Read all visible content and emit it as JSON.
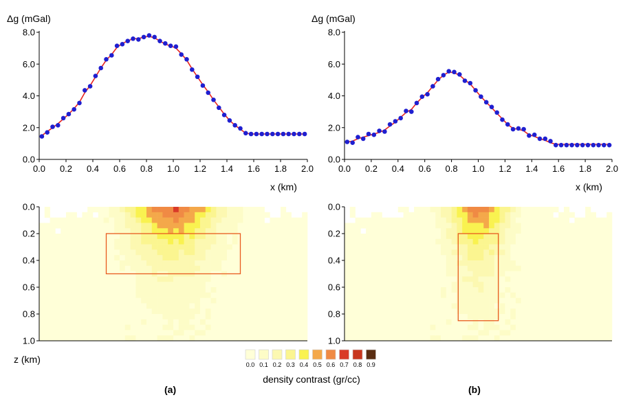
{
  "labels": {
    "dg_axis": "Δg (mGal)",
    "x_axis": "x (km)",
    "z_axis": "z (km)",
    "colorbar_title": "density contrast (gr/cc)",
    "panel_a": "(a)",
    "panel_b": "(b)"
  },
  "chart_data": [
    {
      "type": "line",
      "panel": "(a)",
      "xlabel": "x (km)",
      "ylabel": "Δg (mGal)",
      "xlim": [
        0,
        2.0
      ],
      "ylim": [
        0,
        8.0
      ],
      "xticks": [
        "0.0",
        "0.2",
        "0.4",
        "0.6",
        "0.8",
        "1.0",
        "1.2",
        "1.4",
        "1.6",
        "1.8",
        "2.0"
      ],
      "yticks": [
        "0.0",
        "2.0",
        "4.0",
        "6.0",
        "8.0"
      ],
      "x": [
        0.02,
        0.06,
        0.1,
        0.14,
        0.18,
        0.22,
        0.26,
        0.3,
        0.34,
        0.38,
        0.42,
        0.46,
        0.5,
        0.54,
        0.58,
        0.62,
        0.66,
        0.7,
        0.74,
        0.78,
        0.82,
        0.86,
        0.9,
        0.94,
        0.98,
        1.02,
        1.06,
        1.1,
        1.14,
        1.18,
        1.22,
        1.26,
        1.3,
        1.34,
        1.38,
        1.42,
        1.46,
        1.5,
        1.54,
        1.58,
        1.62,
        1.66,
        1.7,
        1.74,
        1.78,
        1.82,
        1.86,
        1.9,
        1.94,
        1.98
      ],
      "series": [
        {
          "role": "observed (points)",
          "color": "#1f1fd0",
          "values": [
            1.45,
            1.7,
            2.05,
            2.15,
            2.6,
            2.85,
            3.15,
            3.55,
            4.35,
            4.6,
            5.25,
            5.75,
            6.3,
            6.55,
            7.15,
            7.25,
            7.45,
            7.6,
            7.55,
            7.7,
            7.8,
            7.7,
            7.45,
            7.3,
            7.15,
            7.1,
            6.6,
            6.3,
            5.65,
            5.2,
            4.65,
            4.2,
            3.75,
            3.25,
            2.8,
            2.45,
            2.15,
            1.95,
            1.65,
            1.6,
            1.6,
            1.6,
            1.6,
            1.6,
            1.6,
            1.6,
            1.6,
            1.6,
            1.6,
            1.6
          ]
        },
        {
          "role": "calculated (line)",
          "color": "#e8231d",
          "values": [
            1.5,
            1.75,
            2.0,
            2.25,
            2.55,
            2.85,
            3.2,
            3.6,
            4.2,
            4.65,
            5.2,
            5.75,
            6.25,
            6.6,
            7.05,
            7.3,
            7.45,
            7.6,
            7.6,
            7.7,
            7.75,
            7.65,
            7.45,
            7.25,
            7.15,
            7.0,
            6.65,
            6.25,
            5.7,
            5.2,
            4.7,
            4.25,
            3.75,
            3.3,
            2.85,
            2.45,
            2.15,
            1.9,
            1.65,
            1.6,
            1.6,
            1.6,
            1.6,
            1.6,
            1.6,
            1.6,
            1.6,
            1.6,
            1.6,
            1.6
          ]
        }
      ]
    },
    {
      "type": "line",
      "panel": "(b)",
      "xlabel": "x (km)",
      "ylabel": "Δg (mGal)",
      "xlim": [
        0,
        2.0
      ],
      "ylim": [
        0,
        8.0
      ],
      "xticks": [
        "0.0",
        "0.2",
        "0.4",
        "0.6",
        "0.8",
        "1.0",
        "1.2",
        "1.4",
        "1.6",
        "1.8",
        "2.0"
      ],
      "yticks": [
        "0.0",
        "2.0",
        "4.0",
        "6.0",
        "8.0"
      ],
      "x": [
        0.02,
        0.06,
        0.1,
        0.14,
        0.18,
        0.22,
        0.26,
        0.3,
        0.34,
        0.38,
        0.42,
        0.46,
        0.5,
        0.54,
        0.58,
        0.62,
        0.66,
        0.7,
        0.74,
        0.78,
        0.82,
        0.86,
        0.9,
        0.94,
        0.98,
        1.02,
        1.06,
        1.1,
        1.14,
        1.18,
        1.22,
        1.26,
        1.3,
        1.34,
        1.38,
        1.42,
        1.46,
        1.5,
        1.54,
        1.58,
        1.62,
        1.66,
        1.7,
        1.74,
        1.78,
        1.82,
        1.86,
        1.9,
        1.94,
        1.98
      ],
      "series": [
        {
          "role": "observed (points)",
          "color": "#1f1fd0",
          "values": [
            1.1,
            1.05,
            1.4,
            1.3,
            1.6,
            1.55,
            1.8,
            1.75,
            2.2,
            2.4,
            2.6,
            3.05,
            3.0,
            3.55,
            3.95,
            4.1,
            4.6,
            5.05,
            5.3,
            5.55,
            5.5,
            5.35,
            4.95,
            4.8,
            4.35,
            3.95,
            3.6,
            3.3,
            2.95,
            2.5,
            2.2,
            1.9,
            1.95,
            1.9,
            1.5,
            1.55,
            1.3,
            1.3,
            1.15,
            0.9,
            0.9,
            0.9,
            0.9,
            0.9,
            0.9,
            0.9,
            0.9,
            0.9,
            0.9,
            0.9
          ]
        },
        {
          "role": "calculated (line)",
          "color": "#e8231d",
          "values": [
            1.1,
            1.15,
            1.3,
            1.4,
            1.5,
            1.6,
            1.7,
            1.85,
            2.1,
            2.35,
            2.65,
            2.95,
            3.15,
            3.55,
            3.9,
            4.2,
            4.6,
            5.0,
            5.3,
            5.5,
            5.45,
            5.3,
            5.0,
            4.75,
            4.35,
            3.95,
            3.6,
            3.25,
            2.9,
            2.55,
            2.2,
            1.95,
            1.9,
            1.8,
            1.55,
            1.45,
            1.3,
            1.2,
            1.05,
            0.95,
            0.95,
            0.95,
            0.95,
            0.95,
            0.95,
            0.95,
            0.95,
            0.95,
            0.95,
            0.95
          ]
        }
      ]
    },
    {
      "type": "heatmap",
      "panel": "(a)",
      "xlim": [
        0,
        2.0
      ],
      "ylim": [
        1.0,
        0.0
      ],
      "ylabel": "z (km)",
      "yticks": [
        "0.0",
        "0.2",
        "0.4",
        "0.6",
        "0.8",
        "1.0"
      ],
      "cell_size_km": [
        0.04,
        0.04
      ],
      "anomaly": {
        "x_center": 1.0,
        "width": 0.45,
        "depth_decay": 0.55,
        "peak": 0.75
      },
      "outline": {
        "x": [
          0.5,
          1.5
        ],
        "z": [
          0.2,
          0.5
        ],
        "color": "#e85a1e"
      },
      "legend": "density contrast (gr/cc)"
    },
    {
      "type": "heatmap",
      "panel": "(b)",
      "xlim": [
        0,
        2.0
      ],
      "ylim": [
        1.0,
        0.0
      ],
      "ylabel": "z (km)",
      "yticks": [
        "0.0",
        "0.2",
        "0.4",
        "0.6",
        "0.8",
        "1.0"
      ],
      "cell_size_km": [
        0.04,
        0.04
      ],
      "anomaly": {
        "x_center": 1.0,
        "width": 0.3,
        "depth_decay": 0.6,
        "peak": 0.7
      },
      "outline": {
        "x": [
          0.85,
          1.15
        ],
        "z": [
          0.2,
          0.85
        ],
        "color": "#e85a1e"
      },
      "legend": "density contrast (gr/cc)"
    }
  ],
  "colorbar": {
    "title": "density contrast (gr/cc)",
    "ticks": [
      "0.0",
      "0.1",
      "0.2",
      "0.3",
      "0.4",
      "0.5",
      "0.6",
      "0.7",
      "0.8",
      "0.9"
    ],
    "colors": [
      "#ffffd8",
      "#fdfcc7",
      "#fcf8b1",
      "#fbf590",
      "#f9f250",
      "#f4a84a",
      "#f08a44",
      "#d93a28",
      "#c8361e",
      "#5a2d12"
    ]
  }
}
